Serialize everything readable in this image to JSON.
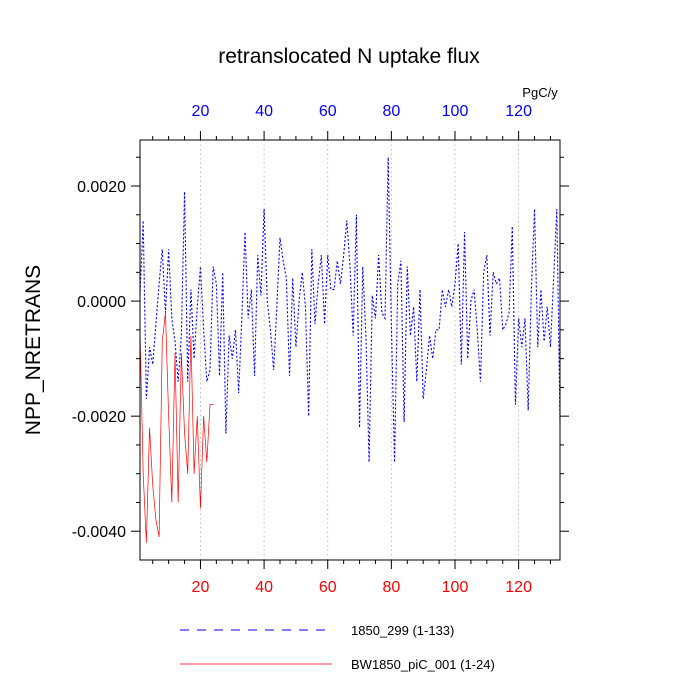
{
  "chart_data": {
    "type": "line",
    "title": "retranslocated N uptake flux",
    "ylabel": "NPP_NRETRANS",
    "units": "PgC/y",
    "xlim": [
      1,
      133
    ],
    "ylim": [
      -0.0045,
      0.0028
    ],
    "xticks": [
      20,
      40,
      60,
      80,
      100,
      120
    ],
    "xtick_labels": [
      "20",
      "40",
      "60",
      "80",
      "100",
      "120"
    ],
    "yticks": [
      -0.004,
      -0.002,
      0.0,
      0.002
    ],
    "ytick_labels": [
      "-0.0040",
      "-0.0020",
      "0.0000",
      "0.0020"
    ],
    "top_axis_color": "#0000ff",
    "bottom_axis_color": "#ff0000",
    "series": [
      {
        "name": "1850_299 (1-133)",
        "color": "#0000ff",
        "dash": "dashed",
        "x_start": 1,
        "values": [
          0.0001,
          0.0014,
          -0.0017,
          -0.0008,
          -0.0011,
          -0.0004,
          0.0003,
          0.0009,
          -0.0002,
          0.0009,
          -0.0003,
          -0.0007,
          -0.0014,
          -0.0006,
          0.0019,
          -0.0014,
          0.0002,
          -0.001,
          -0.0001,
          0.0006,
          -0.0005,
          -0.0014,
          -0.0012,
          0.0006,
          0.0003,
          -0.0013,
          0.0005,
          -0.0023,
          -0.0006,
          -0.001,
          -0.0005,
          -0.0016,
          -0.0003,
          0.0012,
          -0.0003,
          0.0002,
          -0.0013,
          0.0008,
          0.0001,
          0.0016,
          0.0,
          -0.0005,
          -0.0012,
          -0.0001,
          0.0011,
          0.0007,
          0.0004,
          -0.0013,
          0.0004,
          -0.0008,
          0.0,
          0.0005,
          -0.0001,
          -0.002,
          0.0009,
          -0.0004,
          0.0003,
          0.0008,
          -0.0004,
          0.0008,
          0.0002,
          0.0002,
          0.0007,
          0.0003,
          0.0008,
          0.0014,
          0.0006,
          -0.0006,
          0.0015,
          -0.0022,
          0.0006,
          -0.0006,
          -0.0028,
          0.0001,
          -0.0003,
          0.0008,
          -0.0002,
          -0.0003,
          0.0025,
          -0.0004,
          -0.0028,
          0.0003,
          0.0007,
          -0.0021,
          0.0006,
          -0.0006,
          -0.0001,
          -0.0014,
          0.0002,
          -0.0017,
          -0.0012,
          -0.0006,
          -0.001,
          -0.0005,
          -0.0005,
          0.0002,
          -0.0001,
          0.0002,
          -0.0001,
          0.0003,
          0.001,
          -0.0011,
          0.0012,
          -0.001,
          0.0,
          0.0002,
          -0.0005,
          -0.0014,
          0.0005,
          0.0008,
          -0.0006,
          0.0005,
          0.0003,
          0.0004,
          -0.0005,
          -0.0004,
          -0.0002,
          0.0013,
          -0.0018,
          -0.0003,
          -0.0008,
          -0.0003,
          -0.0019,
          0.0002,
          0.0016,
          -0.0008,
          0.0002,
          -0.0007,
          -0.0001,
          -0.0008,
          0.0004,
          0.0016,
          -0.0021
        ]
      },
      {
        "name": "BW1850_piC_001 (1-24)",
        "color": "#ff0000",
        "dash": "solid",
        "x_start": 1,
        "values": [
          -0.0005,
          -0.003,
          -0.0042,
          -0.0022,
          -0.0032,
          -0.0038,
          -0.0041,
          -0.0007,
          -0.0002,
          -0.002,
          -0.0035,
          -0.0009,
          -0.0035,
          -0.0009,
          -0.0023,
          -0.003,
          -0.0006,
          -0.003,
          -0.002,
          -0.0036,
          -0.002,
          -0.0028,
          -0.0018,
          -0.0018
        ]
      }
    ],
    "legend": [
      {
        "label": "1850_299 (1-133)",
        "style": "dashed",
        "color": "#0000ff"
      },
      {
        "label": "BW1850_piC_001 (1-24)",
        "style": "solid",
        "color": "#ff0000"
      }
    ],
    "legend_position": "bottom",
    "grid": "vertical dotted at major x ticks"
  }
}
